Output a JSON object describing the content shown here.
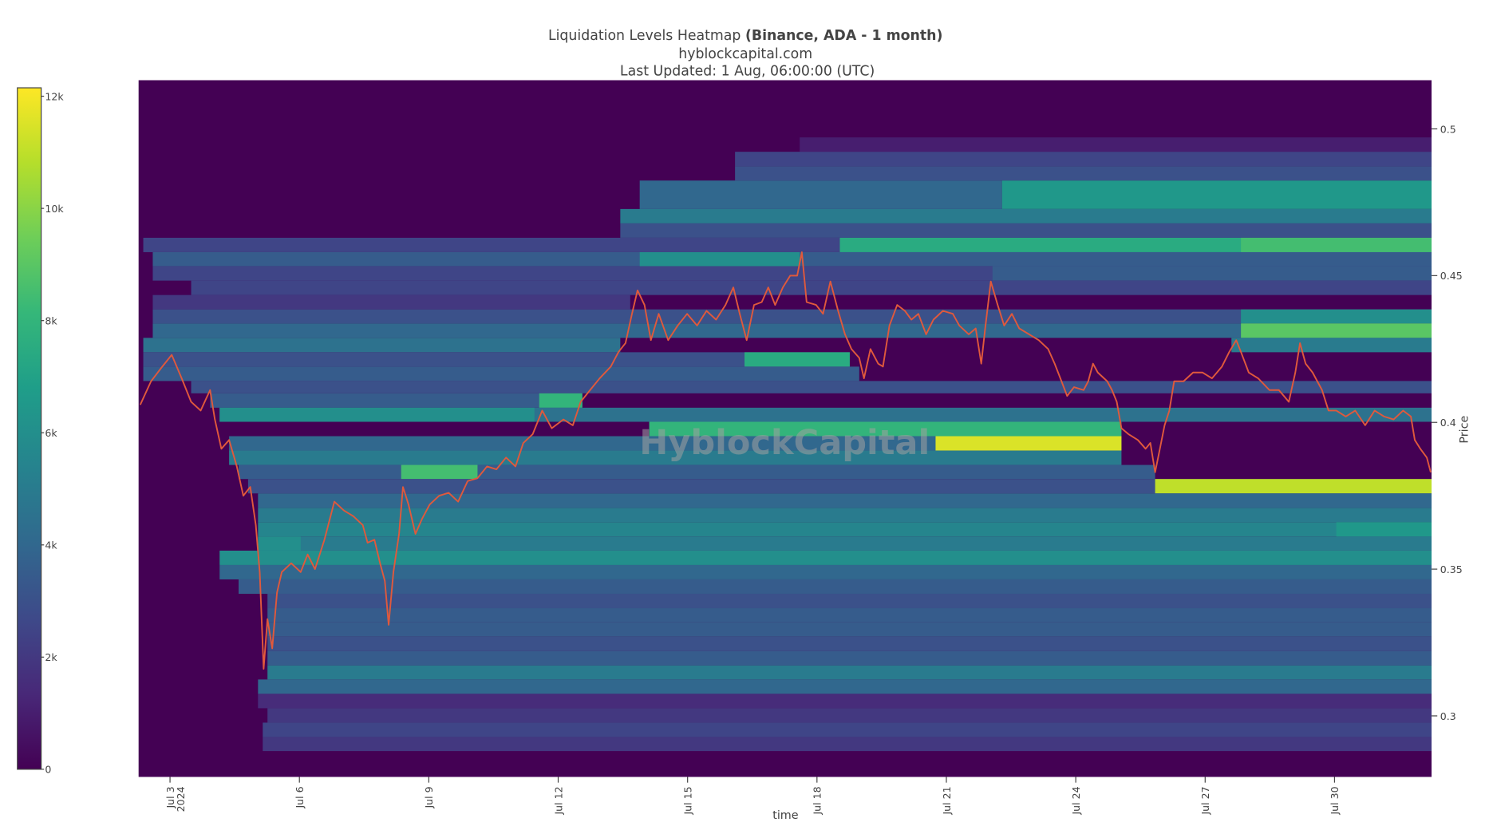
{
  "chart_data": {
    "type": "heatmap",
    "title": "Liquidation Levels Heatmap",
    "title_emphasis": "(Binance, ADA - 1 month)",
    "subtitle": "hyblockcapital.com",
    "updated": "Last Updated: 1 Aug, 06:00:00 (UTC)",
    "watermark": "HyblockCapital",
    "x_label": "time",
    "y_label": "Price",
    "colorscale": "Viridis",
    "xlim": [
      2.27,
      32.25
    ],
    "ylim": [
      0.2792,
      0.5166
    ],
    "zlim": [
      0,
      12150
    ],
    "xticks": [
      {
        "value": 3,
        "label": "Jul 3",
        "sublabel": "2024"
      },
      {
        "value": 6,
        "label": "Jul 6"
      },
      {
        "value": 9,
        "label": "Jul 9"
      },
      {
        "value": 12,
        "label": "Jul 12"
      },
      {
        "value": 15,
        "label": "Jul 15"
      },
      {
        "value": 18,
        "label": "Jul 18"
      },
      {
        "value": 21,
        "label": "Jul 21"
      },
      {
        "value": 24,
        "label": "Jul 24"
      },
      {
        "value": 27,
        "label": "Jul 27"
      },
      {
        "value": 30,
        "label": "Jul 30"
      }
    ],
    "yticks": [
      0.3,
      0.35,
      0.4,
      0.45,
      0.5
    ],
    "zticks": [
      0,
      {
        "value": 2000,
        "label": "2k"
      },
      {
        "value": 4000,
        "label": "4k"
      },
      {
        "value": 6000,
        "label": "6k"
      },
      {
        "value": 8000,
        "label": "8k"
      },
      {
        "value": 10000,
        "label": "10k"
      },
      {
        "value": 12000,
        "label": "12k"
      }
    ],
    "cells": [
      [
        17.6,
        32.25,
        0.4971,
        0.4922,
        1000
      ],
      [
        16.1,
        32.25,
        0.4922,
        0.4873,
        2500
      ],
      [
        16.1,
        32.25,
        0.4873,
        0.4824,
        3000
      ],
      [
        13.89,
        22.29,
        0.4824,
        0.4727,
        4000
      ],
      [
        22.29,
        32.25,
        0.4824,
        0.4727,
        6500
      ],
      [
        13.44,
        32.25,
        0.4727,
        0.4678,
        5000
      ],
      [
        13.44,
        32.25,
        0.4678,
        0.4629,
        3000
      ],
      [
        2.38,
        32.25,
        0.4629,
        0.458,
        2500
      ],
      [
        18.53,
        32.25,
        0.4629,
        0.458,
        7500
      ],
      [
        27.83,
        32.25,
        0.4629,
        0.458,
        8500
      ],
      [
        2.6,
        32.25,
        0.458,
        0.4532,
        3500
      ],
      [
        13.89,
        17.6,
        0.458,
        0.4532,
        6000
      ],
      [
        2.6,
        32.25,
        0.4532,
        0.4483,
        2500
      ],
      [
        22.07,
        32.25,
        0.4532,
        0.4483,
        3500
      ],
      [
        3.49,
        32.25,
        0.4483,
        0.4434,
        2500
      ],
      [
        2.6,
        13.67,
        0.4434,
        0.4385,
        2000
      ],
      [
        2.6,
        32.25,
        0.4385,
        0.4337,
        3000
      ],
      [
        27.83,
        32.25,
        0.4385,
        0.4337,
        6000
      ],
      [
        2.6,
        32.25,
        0.4337,
        0.4288,
        4000
      ],
      [
        27.83,
        32.25,
        0.4337,
        0.4288,
        9000
      ],
      [
        2.38,
        13.44,
        0.4288,
        0.4239,
        4500
      ],
      [
        27.61,
        32.25,
        0.4288,
        0.4239,
        5000
      ],
      [
        2.38,
        18.76,
        0.4239,
        0.419,
        3000
      ],
      [
        16.32,
        18.76,
        0.4239,
        0.419,
        7500
      ],
      [
        2.38,
        18.98,
        0.419,
        0.4141,
        3500
      ],
      [
        3.49,
        32.25,
        0.4141,
        0.4099,
        3000
      ],
      [
        3.93,
        12.56,
        0.4099,
        0.405,
        3500
      ],
      [
        11.56,
        12.56,
        0.4099,
        0.405,
        8000
      ],
      [
        4.15,
        32.25,
        0.405,
        0.4002,
        4500
      ],
      [
        4.15,
        11.45,
        0.405,
        0.4002,
        6000
      ],
      [
        14.11,
        25.06,
        0.4002,
        0.3953,
        8000
      ],
      [
        4.37,
        25.06,
        0.3953,
        0.3904,
        4000
      ],
      [
        20.75,
        25.06,
        0.3953,
        0.3904,
        11500
      ],
      [
        4.37,
        25.06,
        0.3904,
        0.3855,
        5000
      ],
      [
        4.59,
        25.84,
        0.3855,
        0.3807,
        3500
      ],
      [
        8.36,
        10.13,
        0.3855,
        0.3807,
        8500
      ],
      [
        4.81,
        32.25,
        0.3807,
        0.3758,
        3000
      ],
      [
        25.84,
        32.25,
        0.3807,
        0.3758,
        11000
      ],
      [
        5.04,
        32.25,
        0.3758,
        0.3709,
        4000
      ],
      [
        5.04,
        32.25,
        0.3709,
        0.366,
        5000
      ],
      [
        5.04,
        32.25,
        0.366,
        0.3611,
        5500
      ],
      [
        30.04,
        32.25,
        0.366,
        0.3611,
        6500
      ],
      [
        5.04,
        32.25,
        0.3611,
        0.3563,
        5000
      ],
      [
        5.04,
        6.03,
        0.3611,
        0.3563,
        6000
      ],
      [
        4.15,
        32.25,
        0.3563,
        0.3514,
        6000
      ],
      [
        4.15,
        32.25,
        0.3514,
        0.3465,
        4000
      ],
      [
        4.59,
        32.25,
        0.3465,
        0.3416,
        3500
      ],
      [
        5.26,
        32.25,
        0.3416,
        0.3367,
        3000
      ],
      [
        5.26,
        32.25,
        0.3367,
        0.3319,
        3500
      ],
      [
        5.26,
        32.25,
        0.3319,
        0.327,
        3500
      ],
      [
        5.26,
        32.25,
        0.327,
        0.3221,
        3000
      ],
      [
        5.26,
        32.25,
        0.3221,
        0.3172,
        3500
      ],
      [
        5.26,
        32.25,
        0.3172,
        0.3124,
        5000
      ],
      [
        5.04,
        32.25,
        0.3124,
        0.3075,
        4000
      ],
      [
        5.04,
        32.25,
        0.3075,
        0.3026,
        1500
      ],
      [
        5.26,
        32.25,
        0.3026,
        0.2977,
        2000
      ],
      [
        5.15,
        32.25,
        0.2977,
        0.2928,
        2500
      ],
      [
        5.15,
        32.25,
        0.2928,
        0.288,
        2000
      ]
    ],
    "price": {
      "color": "#e0593c",
      "x": [
        2.31,
        2.56,
        2.82,
        3.04,
        3.27,
        3.49,
        3.71,
        3.93,
        4.04,
        4.19,
        4.37,
        4.55,
        4.7,
        4.86,
        4.99,
        5.08,
        5.17,
        5.26,
        5.37,
        5.48,
        5.59,
        5.81,
        6.03,
        6.19,
        6.36,
        6.58,
        6.81,
        7.03,
        7.25,
        7.47,
        7.58,
        7.74,
        7.87,
        7.98,
        8.07,
        8.18,
        8.31,
        8.4,
        8.53,
        8.69,
        8.84,
        9.02,
        9.24,
        9.46,
        9.68,
        9.9,
        10.13,
        10.35,
        10.57,
        10.79,
        11.01,
        11.19,
        11.41,
        11.63,
        11.85,
        12.12,
        12.34,
        12.52,
        12.74,
        12.96,
        13.22,
        13.4,
        13.56,
        13.71,
        13.84,
        14.0,
        14.15,
        14.33,
        14.55,
        14.77,
        14.99,
        15.22,
        15.44,
        15.66,
        15.88,
        16.06,
        16.21,
        16.37,
        16.54,
        16.72,
        16.87,
        17.03,
        17.21,
        17.38,
        17.54,
        17.65,
        17.76,
        17.98,
        18.14,
        18.31,
        18.49,
        18.65,
        18.8,
        18.98,
        19.09,
        19.24,
        19.42,
        19.53,
        19.68,
        19.86,
        20.04,
        20.19,
        20.35,
        20.53,
        20.7,
        20.92,
        21.15,
        21.3,
        21.52,
        21.68,
        21.81,
        21.9,
        22.03,
        22.19,
        22.34,
        22.52,
        22.69,
        22.92,
        23.14,
        23.36,
        23.51,
        23.67,
        23.8,
        23.96,
        24.18,
        24.29,
        24.4,
        24.51,
        24.73,
        24.84,
        24.95,
        25.06,
        25.22,
        25.44,
        25.62,
        25.73,
        25.84,
        25.95,
        26.06,
        26.17,
        26.28,
        26.5,
        26.72,
        26.94,
        27.16,
        27.39,
        27.56,
        27.72,
        27.83,
        28.01,
        28.23,
        28.49,
        28.71,
        28.94,
        29.09,
        29.2,
        29.33,
        29.49,
        29.71,
        29.86,
        30.04,
        30.26,
        30.48,
        30.71,
        30.93,
        31.15,
        31.37,
        31.59,
        31.77,
        31.86,
        31.99,
        32.14,
        32.23
      ],
      "values": [
        0.406,
        0.414,
        0.419,
        0.423,
        0.415,
        0.407,
        0.404,
        0.411,
        0.401,
        0.391,
        0.394,
        0.385,
        0.375,
        0.378,
        0.365,
        0.349,
        0.316,
        0.333,
        0.323,
        0.342,
        0.349,
        0.352,
        0.349,
        0.355,
        0.35,
        0.36,
        0.373,
        0.37,
        0.368,
        0.365,
        0.359,
        0.36,
        0.352,
        0.346,
        0.331,
        0.349,
        0.362,
        0.378,
        0.372,
        0.362,
        0.367,
        0.372,
        0.375,
        0.376,
        0.373,
        0.38,
        0.381,
        0.385,
        0.384,
        0.388,
        0.385,
        0.393,
        0.396,
        0.404,
        0.398,
        0.401,
        0.399,
        0.407,
        0.411,
        0.415,
        0.419,
        0.424,
        0.427,
        0.437,
        0.445,
        0.44,
        0.428,
        0.437,
        0.428,
        0.433,
        0.437,
        0.433,
        0.438,
        0.435,
        0.44,
        0.446,
        0.437,
        0.428,
        0.44,
        0.441,
        0.446,
        0.44,
        0.446,
        0.45,
        0.45,
        0.458,
        0.441,
        0.44,
        0.437,
        0.448,
        0.438,
        0.43,
        0.425,
        0.422,
        0.415,
        0.425,
        0.42,
        0.419,
        0.433,
        0.44,
        0.438,
        0.435,
        0.437,
        0.43,
        0.435,
        0.438,
        0.437,
        0.433,
        0.43,
        0.432,
        0.42,
        0.432,
        0.448,
        0.44,
        0.433,
        0.437,
        0.432,
        0.43,
        0.428,
        0.425,
        0.42,
        0.414,
        0.409,
        0.412,
        0.411,
        0.414,
        0.42,
        0.417,
        0.414,
        0.411,
        0.407,
        0.398,
        0.396,
        0.394,
        0.391,
        0.393,
        0.383,
        0.391,
        0.399,
        0.404,
        0.414,
        0.414,
        0.417,
        0.417,
        0.415,
        0.419,
        0.424,
        0.428,
        0.424,
        0.417,
        0.415,
        0.411,
        0.411,
        0.407,
        0.417,
        0.427,
        0.42,
        0.417,
        0.411,
        0.404,
        0.404,
        0.402,
        0.404,
        0.399,
        0.404,
        0.402,
        0.401,
        0.404,
        0.402,
        0.394,
        0.391,
        0.388,
        0.383
      ]
    }
  }
}
